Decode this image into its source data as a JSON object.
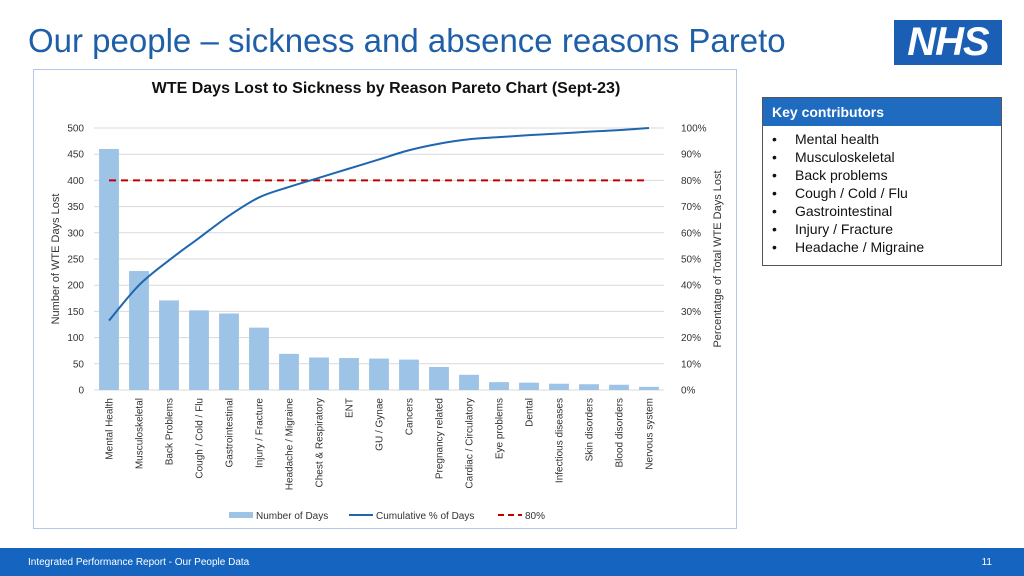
{
  "slide": {
    "title": "Our people – sickness and absence reasons Pareto",
    "logo_text": "NHS",
    "footer_text": "Integrated Performance Report - Our People Data",
    "page_number": "11"
  },
  "key_box": {
    "header": "Key contributors",
    "bullet": "•",
    "items": [
      "Mental health",
      "Musculoskeletal",
      "Back problems",
      "Cough / Cold / Flu",
      "Gastrointestinal",
      "Injury / Fracture",
      "Headache / Migraine"
    ]
  },
  "chart_data": {
    "type": "bar",
    "title": "WTE Days Lost to Sickness by Reason Pareto Chart (Sept-23)",
    "categories": [
      "Mental Health",
      "Musculoskeletal",
      "Back Problems",
      "Cough / Cold / Flu",
      "Gastrointestinal",
      "Injury / Fracture",
      "Headache / Migraine",
      "Chest & Respiratory",
      "ENT",
      "GU / Gynae",
      "Cancers",
      "Pregnancy related",
      "Cardiac / Circulatory",
      "Eye problems",
      "Dental",
      "Infectious diseases",
      "Skin disorders",
      "Blood disorders",
      "Nervous system"
    ],
    "series": [
      {
        "name": "Number of Days",
        "kind": "bar",
        "axis": "left",
        "color": "#9dc3e6",
        "values": [
          460,
          227,
          171,
          152,
          146,
          119,
          69,
          62,
          61,
          60,
          58,
          44,
          29,
          15,
          14,
          12,
          11,
          10,
          6
        ]
      },
      {
        "name": "Cumulative % of Days",
        "kind": "line",
        "axis": "right",
        "color": "#1f66b0",
        "values": [
          26.5,
          40,
          49.5,
          58,
          66.5,
          73.5,
          77.5,
          81,
          84.5,
          88,
          91.5,
          94,
          95.7,
          96.5,
          97.3,
          97.9,
          98.6,
          99.2,
          100
        ]
      },
      {
        "name": "80%",
        "kind": "reference",
        "axis": "right",
        "color": "#c00000",
        "value": 80
      }
    ],
    "ylabel": "Number of WTE Days Lost",
    "y2label": "Percentatge of Total WTE Days Lost",
    "ylim": [
      0,
      500
    ],
    "y_ticks": [
      "0",
      "50",
      "100",
      "150",
      "200",
      "250",
      "300",
      "350",
      "400",
      "450",
      "500"
    ],
    "y2lim": [
      0,
      100
    ],
    "y2_ticks": [
      "0%",
      "10%",
      "20%",
      "30%",
      "40%",
      "50%",
      "60%",
      "70%",
      "80%",
      "90%",
      "100%"
    ],
    "grid": true,
    "legend_position": "bottom"
  }
}
